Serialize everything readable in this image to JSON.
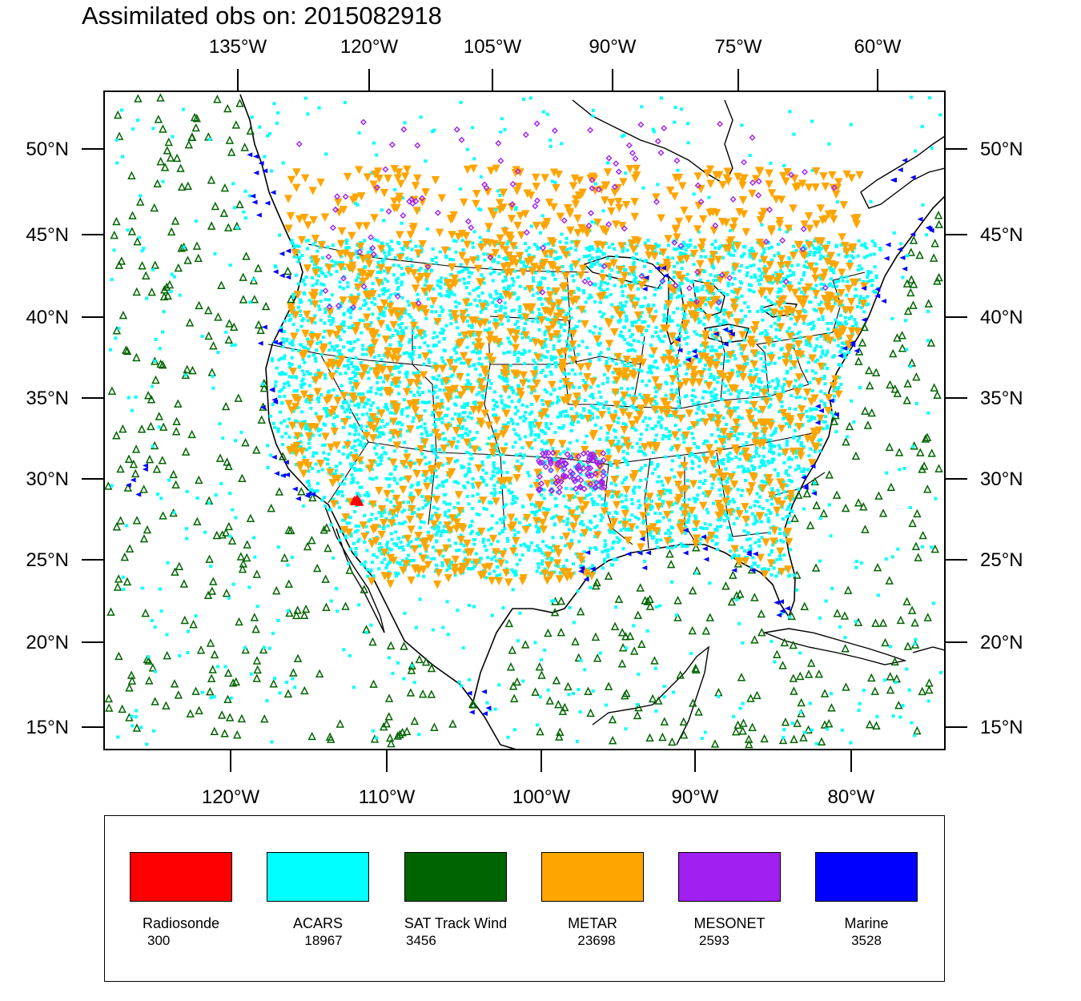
{
  "title": "Assimilated obs on: 2015082918",
  "axes": {
    "top_lon_labels": [
      "135°W",
      "120°W",
      "105°W",
      "90°W",
      "75°W",
      "60°W"
    ],
    "bottom_lon_labels": [
      "120°W",
      "110°W",
      "100°W",
      "90°W",
      "80°W"
    ],
    "lat_labels": [
      "50°N",
      "45°N",
      "40°N",
      "35°N",
      "30°N",
      "25°N",
      "20°N",
      "15°N"
    ]
  },
  "legend": [
    {
      "name": "Radiosonde",
      "count": "300",
      "color": "#ff0000"
    },
    {
      "name": "ACARS",
      "count": "18967",
      "color": "#00ffff"
    },
    {
      "name": "SAT Track Wind",
      "count": "3456",
      "color": "#006400"
    },
    {
      "name": "METAR",
      "count": "23698",
      "color": "#ffa500"
    },
    {
      "name": "MESONET",
      "count": "2593",
      "color": "#a020f0"
    },
    {
      "name": "Marine",
      "count": "3528",
      "color": "#0000ff"
    }
  ],
  "colors": {
    "radiosonde": "#ff0000",
    "acars": "#00ffff",
    "sat_track_wind": "#006400",
    "metar": "#ffa500",
    "mesonet": "#a020f0",
    "marine": "#0000ff"
  }
}
